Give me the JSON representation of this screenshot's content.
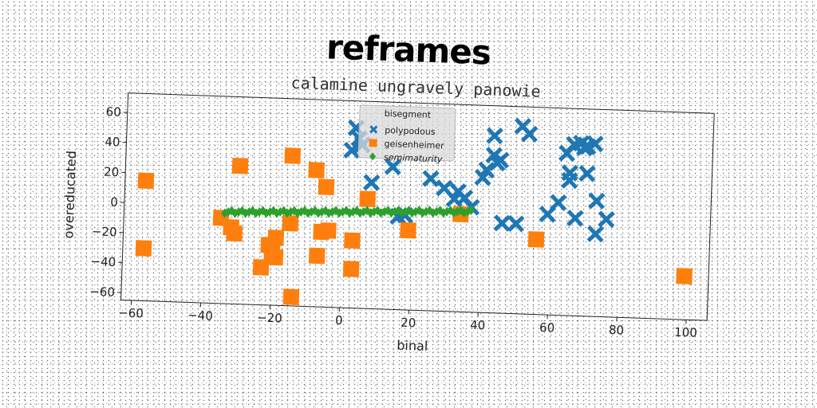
{
  "chart_data": {
    "type": "scatter",
    "title": "reframes",
    "subtitle": "calamine ungravely panowie",
    "xlabel": "binal",
    "ylabel": "overeducated",
    "xlim": [
      -63,
      106
    ],
    "ylim": [
      -65,
      73
    ],
    "xticks": [
      -60,
      -40,
      -20,
      0,
      20,
      40,
      60,
      80,
      100
    ],
    "yticks": [
      -60,
      -40,
      -20,
      0,
      20,
      40,
      60
    ],
    "grid": false,
    "legend": {
      "title": "bisegment",
      "placement": "top-center"
    },
    "series": [
      {
        "name": "polypodous",
        "marker": "x",
        "color": "#1f77b4",
        "points": [
          [
            2,
            40
          ],
          [
            3,
            55
          ],
          [
            4,
            48
          ],
          [
            5,
            44
          ],
          [
            8,
            19
          ],
          [
            14,
            30
          ],
          [
            16,
            -3
          ],
          [
            18,
            -2
          ],
          [
            25,
            23
          ],
          [
            29,
            17
          ],
          [
            32,
            10
          ],
          [
            33,
            15
          ],
          [
            35,
            11
          ],
          [
            37,
            5
          ],
          [
            40,
            25
          ],
          [
            41,
            30
          ],
          [
            43,
            53
          ],
          [
            43,
            40
          ],
          [
            44,
            35
          ],
          [
            45,
            37
          ],
          [
            46,
            -5
          ],
          [
            50,
            -5
          ],
          [
            51,
            60
          ],
          [
            53,
            55
          ],
          [
            59,
            2
          ],
          [
            62,
            10
          ],
          [
            64,
            43
          ],
          [
            65,
            30
          ],
          [
            65,
            25
          ],
          [
            66,
            49
          ],
          [
            67,
            0
          ],
          [
            68,
            50
          ],
          [
            69,
            47
          ],
          [
            70,
            48
          ],
          [
            70,
            30
          ],
          [
            72,
            50
          ],
          [
            73,
            -10
          ],
          [
            73,
            12
          ],
          [
            76,
            0
          ]
        ]
      },
      {
        "name": "geisenheimer",
        "marker": "s",
        "color": "#ff7f0e",
        "points": [
          [
            -57,
            15
          ],
          [
            -57,
            -30
          ],
          [
            -35,
            -8
          ],
          [
            -32,
            -14
          ],
          [
            -31,
            -18
          ],
          [
            -30,
            27
          ],
          [
            -23,
            -40
          ],
          [
            -21,
            -25
          ],
          [
            -20,
            -30
          ],
          [
            -19,
            -20
          ],
          [
            -19,
            -33
          ],
          [
            -15,
            35
          ],
          [
            -15,
            -10
          ],
          [
            -14,
            -59
          ],
          [
            -8,
            26
          ],
          [
            -7,
            -31
          ],
          [
            -6,
            -15
          ],
          [
            -5,
            15
          ],
          [
            -4,
            -14
          ],
          [
            3,
            -20
          ],
          [
            3,
            -39
          ],
          [
            7,
            8
          ],
          [
            19,
            -12
          ],
          [
            34,
            0
          ],
          [
            56,
            -15
          ],
          [
            99,
            -36
          ]
        ]
      },
      {
        "name": "semimaturity",
        "marker": "d",
        "color": "#2ca02c",
        "line": {
          "x0": -34,
          "y0": -4,
          "x1": 37,
          "y1": 2,
          "count": 72
        }
      }
    ]
  }
}
